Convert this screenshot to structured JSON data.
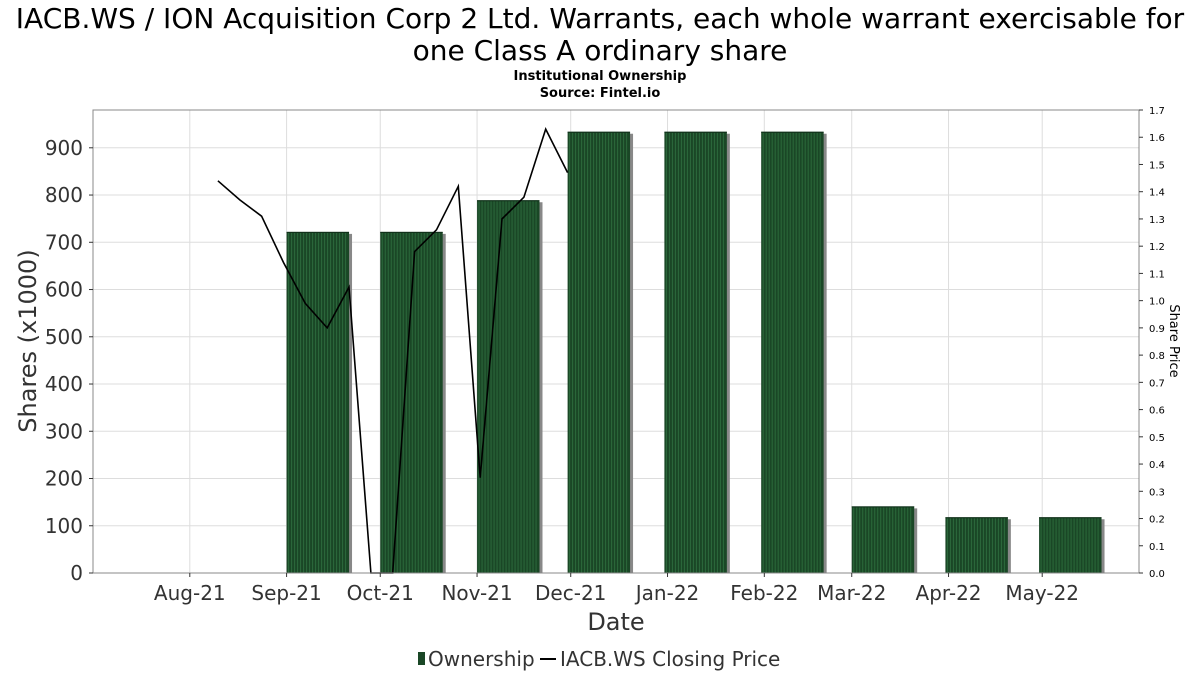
{
  "title_line1": "IACB.WS / ION Acquisition Corp 2 Ltd. Warrants, each whole warrant exercisable for",
  "title_line2": "one Class A ordinary share",
  "subtitle_line1": "Institutional Ownership",
  "subtitle_line2": "Source: Fintel.io",
  "colors": {
    "bar_fill": "#1a4726",
    "bar_stripe": "#2c6a3c",
    "bar_shadow": "#888888",
    "price_line": "#000000",
    "grid": "#dddddd",
    "axes": "#888888"
  },
  "chart_data": {
    "type": "bar",
    "title": "IACB.WS / ION Acquisition Corp 2 Ltd. Warrants, each whole warrant exercisable for one Class A ordinary share",
    "subtitle": "Institutional Ownership",
    "xlabel": "Date",
    "ylabel": "Shares (x1000)",
    "y2label": "Share Price",
    "grid": true,
    "legend_position": "bottom",
    "categories": [
      "Aug-21",
      "Sep-21",
      "Oct-21",
      "Nov-21",
      "Dec-21",
      "Jan-22",
      "Feb-22",
      "Mar-22",
      "Apr-22",
      "May-22"
    ],
    "ylim": [
      0,
      980
    ],
    "yticks": [
      0,
      100,
      200,
      300,
      400,
      500,
      600,
      700,
      800,
      900
    ],
    "y2lim": [
      0,
      1.7
    ],
    "y2ticks": [
      "0.0",
      "0.1",
      "0.2",
      "0.3",
      "0.4",
      "0.5",
      "0.6",
      "0.7",
      "0.8",
      "0.9",
      "1.0",
      "1.1",
      "1.2",
      "1.3",
      "1.4",
      "1.5",
      "1.6",
      "1.7"
    ],
    "series": [
      {
        "name": "Ownership",
        "type": "bar",
        "bars": [
          {
            "x": "2021-09-01",
            "x_end": "2021-09-21",
            "value": 722
          },
          {
            "x": "2021-10-01",
            "x_end": "2021-10-21",
            "value": 722
          },
          {
            "x": "2021-11-01",
            "x_end": "2021-11-21",
            "value": 789
          },
          {
            "x": "2021-11-30",
            "x_end": "2021-12-20",
            "value": 934
          },
          {
            "x": "2021-12-31",
            "x_end": "2022-01-20",
            "value": 934
          },
          {
            "x": "2022-01-31",
            "x_end": "2022-02-20",
            "value": 934
          },
          {
            "x": "2022-03-01",
            "x_end": "2022-03-21",
            "value": 141
          },
          {
            "x": "2022-03-31",
            "x_end": "2022-04-20",
            "value": 118
          },
          {
            "x": "2022-04-30",
            "x_end": "2022-05-20",
            "value": 118
          }
        ]
      },
      {
        "name": "IACB.WS Closing Price",
        "type": "line",
        "axis": "right",
        "points": [
          [
            "2021-08-10",
            1.44
          ],
          [
            "2021-08-17",
            1.37
          ],
          [
            "2021-08-24",
            1.31
          ],
          [
            "2021-08-31",
            1.14
          ],
          [
            "2021-09-07",
            0.99
          ],
          [
            "2021-09-14",
            0.9
          ],
          [
            "2021-09-21",
            1.05
          ],
          [
            "2021-09-28",
            0.0
          ],
          [
            "2021-10-05",
            0.0
          ],
          [
            "2021-10-12",
            1.18
          ],
          [
            "2021-10-19",
            1.26
          ],
          [
            "2021-10-26",
            1.42
          ],
          [
            "2021-11-02",
            0.35
          ],
          [
            "2021-11-09",
            1.3
          ],
          [
            "2021-11-16",
            1.38
          ],
          [
            "2021-11-23",
            1.63
          ],
          [
            "2021-11-30",
            1.47
          ]
        ]
      }
    ]
  },
  "month_ticks": [
    {
      "label": "Aug-21",
      "date": "2021-08-01"
    },
    {
      "label": "Sep-21",
      "date": "2021-09-01"
    },
    {
      "label": "Oct-21",
      "date": "2021-10-01"
    },
    {
      "label": "Nov-21",
      "date": "2021-11-01"
    },
    {
      "label": "Dec-21",
      "date": "2021-12-01"
    },
    {
      "label": "Jan-22",
      "date": "2022-01-01"
    },
    {
      "label": "Feb-22",
      "date": "2022-02-01"
    },
    {
      "label": "Mar-22",
      "date": "2022-03-01"
    },
    {
      "label": "Apr-22",
      "date": "2022-04-01"
    },
    {
      "label": "May-22",
      "date": "2022-05-01"
    }
  ],
  "x_range": [
    "2021-07-01",
    "2022-06-01"
  ]
}
